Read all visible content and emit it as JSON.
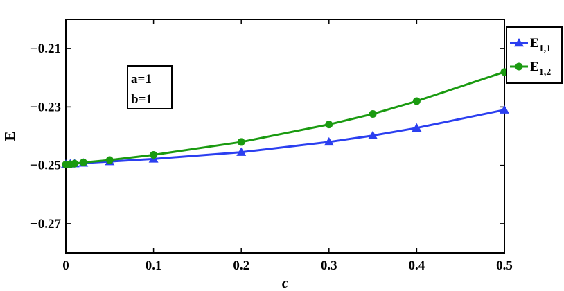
{
  "chart_data": {
    "type": "line",
    "xlabel": "c",
    "ylabel": "E",
    "xlim": [
      0,
      0.5
    ],
    "ylim": [
      -0.28,
      -0.2
    ],
    "xticks": [
      "0",
      "0.1",
      "0.2",
      "0.3",
      "0.4",
      "0.5"
    ],
    "xtick_values": [
      0,
      0.1,
      0.2,
      0.3,
      0.4,
      0.5
    ],
    "yticks": [
      "−0.21",
      "−0.23",
      "−0.25",
      "−0.27"
    ],
    "ytick_values": [
      -0.21,
      -0.23,
      -0.25,
      -0.27
    ],
    "grid": false,
    "legend_position": "outside-top-right",
    "annotation": {
      "line1": "a=1",
      "line2": "b=1"
    },
    "series": [
      {
        "name_main": "E",
        "name_sub": "1,1",
        "color": "#2b3ff0",
        "marker": "triangle",
        "x": [
          0,
          0.005,
          0.01,
          0.02,
          0.05,
          0.1,
          0.2,
          0.3,
          0.35,
          0.4,
          0.5
        ],
        "y": [
          -0.2496,
          -0.2495,
          -0.2494,
          -0.2492,
          -0.2487,
          -0.2478,
          -0.2455,
          -0.242,
          -0.2398,
          -0.2372,
          -0.231
        ]
      },
      {
        "name_main": "E",
        "name_sub": "1,2",
        "color": "#1a9a10",
        "marker": "circle",
        "x": [
          0,
          0.005,
          0.01,
          0.02,
          0.05,
          0.1,
          0.2,
          0.3,
          0.35,
          0.4,
          0.5
        ],
        "y": [
          -0.2497,
          -0.2496,
          -0.2494,
          -0.249,
          -0.2482,
          -0.2464,
          -0.242,
          -0.236,
          -0.2324,
          -0.228,
          -0.218
        ]
      }
    ]
  }
}
